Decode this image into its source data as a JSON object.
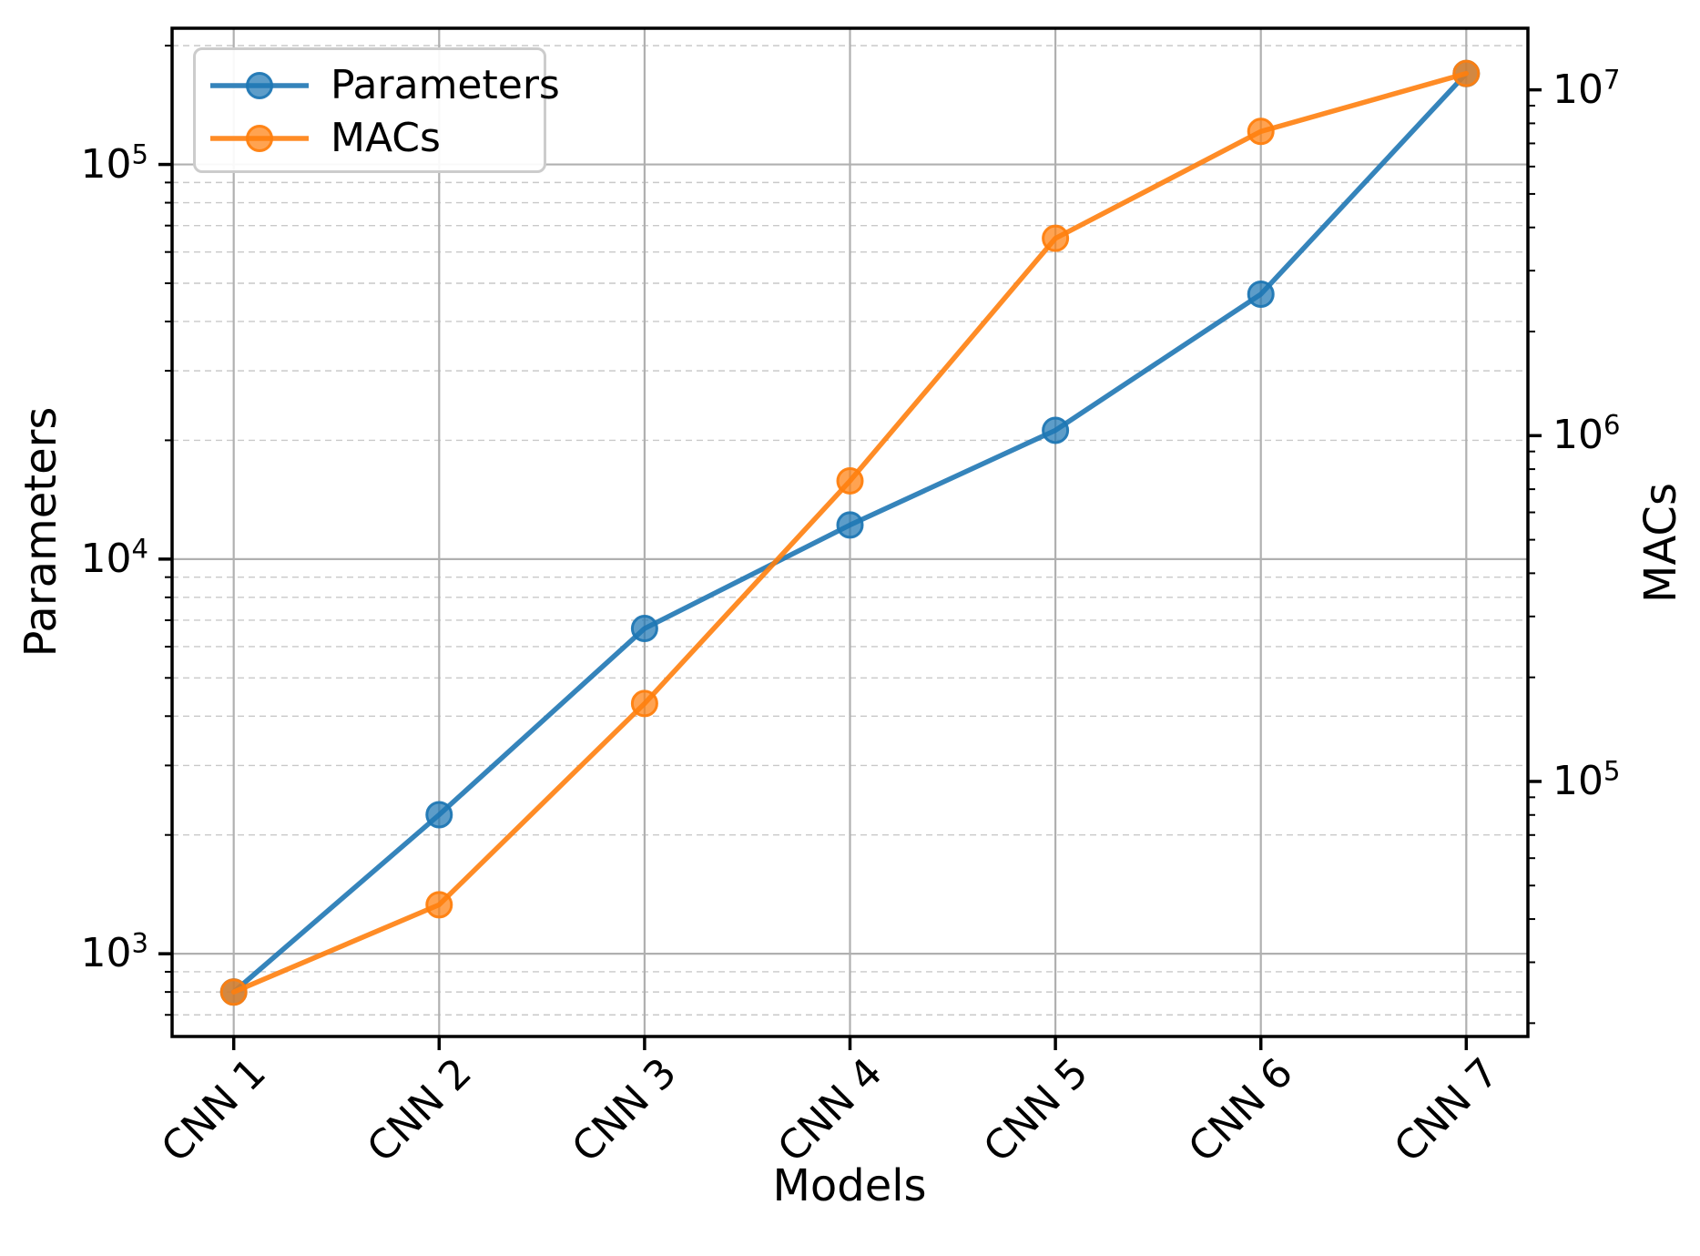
{
  "chart_data": {
    "type": "line",
    "title": "",
    "xlabel": "Models",
    "categories": [
      "CNN 1",
      "CNN 2",
      "CNN 3",
      "CNN 4",
      "CNN 5",
      "CNN 6",
      "CNN 7"
    ],
    "series": [
      {
        "name": "Parameters",
        "axis": "left",
        "color": "#1f77b4",
        "marker": "circle",
        "values": [
          800,
          2250,
          6670,
          12200,
          21200,
          46900,
          170000
        ]
      },
      {
        "name": "MACs",
        "axis": "right",
        "color": "#ff7f0e",
        "marker": "circle",
        "values": [
          24600,
          44000,
          168000,
          740000,
          3720000,
          7580000,
          11150000
        ]
      }
    ],
    "left_axis": {
      "label": "Parameters",
      "scale": "log",
      "min": 617,
      "max": 221400,
      "major_tick_exponents": [
        3,
        4,
        5
      ],
      "tick_base": "10"
    },
    "right_axis": {
      "label": "MACs",
      "scale": "log",
      "min": 18300,
      "max": 15070000,
      "major_tick_exponents": [
        5,
        6,
        7
      ],
      "tick_base": "10"
    },
    "grid": {
      "vertical_major": "solid",
      "horizontal_major": "solid",
      "horizontal_minor": "dashed",
      "minor_grid_axis": "left",
      "major_color": "#b0b0b0",
      "minor_color": "#c9c9c9"
    },
    "legend": {
      "position": "top-left",
      "items": [
        "Parameters",
        "MACs"
      ]
    }
  }
}
